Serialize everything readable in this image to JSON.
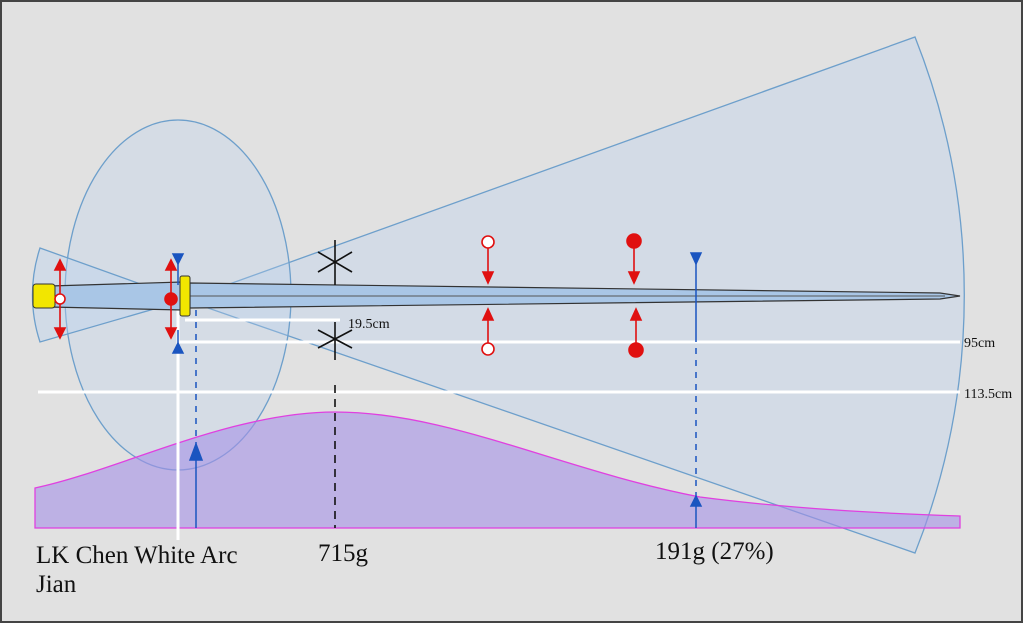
{
  "labels": {
    "sword_name": [
      "LK Chen White Arc",
      "Jian"
    ],
    "mass": "715g",
    "tip_mass": "191g (27%)",
    "grip_distance": "19.5cm",
    "length_1": "95cm",
    "length_2": "113.5cm"
  }
}
